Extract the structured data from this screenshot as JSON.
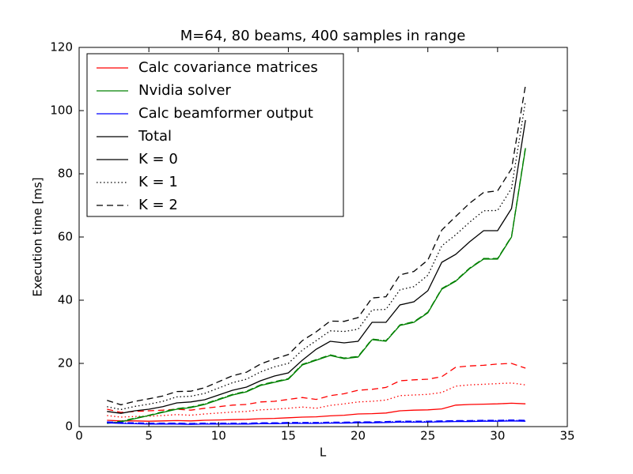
{
  "chart_data": {
    "type": "line",
    "title": "M=64, 80 beams, 400 samples in range",
    "xlabel": "L",
    "ylabel": "Execution time [ms]",
    "x": [
      2,
      3,
      4,
      5,
      6,
      7,
      8,
      9,
      10,
      11,
      12,
      13,
      14,
      15,
      16,
      17,
      18,
      19,
      20,
      21,
      22,
      23,
      24,
      25,
      26,
      27,
      28,
      29,
      30,
      31,
      32
    ],
    "xlim": [
      0,
      35
    ],
    "xticks": [
      0,
      5,
      10,
      15,
      20,
      25,
      30,
      35
    ],
    "ylim": [
      0,
      120
    ],
    "yticks": [
      0,
      20,
      40,
      60,
      80,
      100,
      120
    ],
    "legend": "upper left",
    "series": [
      {
        "name": "Calc covariance matrices",
        "color": "#ff0000",
        "values": [
          [
            2,
            1.8,
            1.8,
            1.7,
            1.8,
            1.9,
            1.8,
            2,
            2.1,
            2.2,
            2.3,
            2.5,
            2.6,
            2.8,
            3,
            3.1,
            3.4,
            3.6,
            4,
            4.1,
            4.3,
            5,
            5.2,
            5.3,
            5.6,
            6.8,
            7,
            7.1,
            7.2,
            7.4,
            7.2
          ],
          [
            3.5,
            3,
            3.2,
            3.3,
            3.5,
            3.8,
            3.6,
            4,
            4.3,
            4.6,
            4.8,
            5.3,
            5.5,
            5.8,
            6.2,
            5.8,
            6.7,
            7.2,
            7.8,
            8,
            8.4,
            9.8,
            10,
            10.2,
            10.8,
            12.8,
            13.2,
            13.4,
            13.6,
            13.8,
            13.2
          ],
          [
            5.5,
            4.5,
            4.8,
            5,
            5.2,
            5.5,
            5.2,
            5.8,
            6.3,
            6.8,
            7,
            7.8,
            8,
            8.6,
            9.2,
            8.6,
            9.8,
            10.4,
            11.5,
            11.8,
            12.4,
            14.5,
            14.8,
            15,
            15.8,
            18.8,
            19.2,
            19.4,
            19.8,
            20,
            18.5
          ]
        ]
      },
      {
        "name": "Nvidia solver",
        "color": "#008000",
        "values": [
          [
            1,
            1.5,
            2.5,
            3.5,
            4.5,
            5.5,
            6,
            7,
            8.5,
            10,
            11,
            13,
            14,
            15,
            19.5,
            21,
            22.5,
            21.5,
            22,
            27.5,
            27,
            32,
            33,
            36,
            43.5,
            46,
            50,
            53,
            53,
            60,
            88
          ],
          [
            1.1,
            1.6,
            2.6,
            3.5,
            4.6,
            5.6,
            6.1,
            7.1,
            8.6,
            10.1,
            11.1,
            13.1,
            14.1,
            15.1,
            19.6,
            21.1,
            22.6,
            21.6,
            22.1,
            27.6,
            27.1,
            32.1,
            33.1,
            36.1,
            43.6,
            46.1,
            50.1,
            53.1,
            53.1,
            60.1,
            88.2
          ],
          [
            1.2,
            1.7,
            2.7,
            3.6,
            4.7,
            5.7,
            6.2,
            7.2,
            8.7,
            10.2,
            11.2,
            13.2,
            14.2,
            15.2,
            19.7,
            21.2,
            22.7,
            21.7,
            22.2,
            27.7,
            27.2,
            32.2,
            33.2,
            36.2,
            43.7,
            46.2,
            50.2,
            53.2,
            53.2,
            60.2,
            88.4
          ]
        ]
      },
      {
        "name": "Calc beamformer output",
        "color": "#0000ff",
        "values": [
          [
            1.2,
            1,
            0.9,
            0.8,
            0.8,
            0.8,
            0.7,
            0.8,
            0.8,
            0.8,
            0.8,
            0.9,
            0.9,
            1,
            1,
            1,
            1.1,
            1.1,
            1.2,
            1.2,
            1.3,
            1.4,
            1.4,
            1.4,
            1.5,
            1.6,
            1.6,
            1.7,
            1.7,
            1.8,
            1.7
          ],
          [
            1.4,
            1.2,
            1.1,
            1,
            1,
            1,
            0.9,
            1,
            1,
            1,
            1,
            1.1,
            1.1,
            1.2,
            1.2,
            1.2,
            1.3,
            1.3,
            1.4,
            1.4,
            1.5,
            1.6,
            1.6,
            1.6,
            1.7,
            1.8,
            1.8,
            1.9,
            1.9,
            2,
            1.9
          ],
          [
            1.5,
            1.3,
            1.2,
            1.1,
            1.1,
            1.1,
            1,
            1.1,
            1.1,
            1.1,
            1.1,
            1.2,
            1.2,
            1.3,
            1.3,
            1.3,
            1.4,
            1.4,
            1.5,
            1.5,
            1.6,
            1.7,
            1.7,
            1.7,
            1.8,
            1.9,
            1.9,
            2,
            2,
            2.1,
            2
          ]
        ]
      },
      {
        "name": "Total",
        "color": "#000000",
        "values": [
          [
            4.8,
            4.2,
            5,
            5.5,
            6.3,
            7.5,
            7.8,
            8.5,
            10,
            11.5,
            12.5,
            14.5,
            16,
            17,
            21,
            24.5,
            27,
            26.5,
            27,
            33,
            33,
            38.5,
            39.5,
            43,
            52,
            54.5,
            58.5,
            62,
            62,
            69,
            97
          ],
          [
            6.3,
            5.4,
            6.4,
            7.1,
            8,
            9.4,
            9.6,
            10.5,
            12.2,
            13.9,
            15,
            17.3,
            18.9,
            20,
            24.2,
            27.2,
            30.3,
            30.1,
            30.8,
            36.9,
            37.1,
            43.3,
            44.3,
            47.9,
            57.2,
            60.7,
            64.7,
            68.3,
            68.4,
            75.4,
            103
          ],
          [
            8.3,
            6.9,
            8,
            8.8,
            9.7,
            11.1,
            11.2,
            12.3,
            14.2,
            16.1,
            17.2,
            19.8,
            21.4,
            22.8,
            27.2,
            30,
            33.4,
            33.3,
            34.5,
            40.7,
            41.1,
            48,
            49.1,
            52.7,
            62.2,
            66.5,
            70.7,
            74.1,
            74.6,
            81.6,
            108
          ]
        ]
      }
    ],
    "styles": [
      {
        "name": "K = 0",
        "dash": "solid",
        "color": "#000000"
      },
      {
        "name": "K = 1",
        "dash": "dotted",
        "color": "#000000"
      },
      {
        "name": "K = 2",
        "dash": "dashed",
        "color": "#000000"
      }
    ]
  }
}
